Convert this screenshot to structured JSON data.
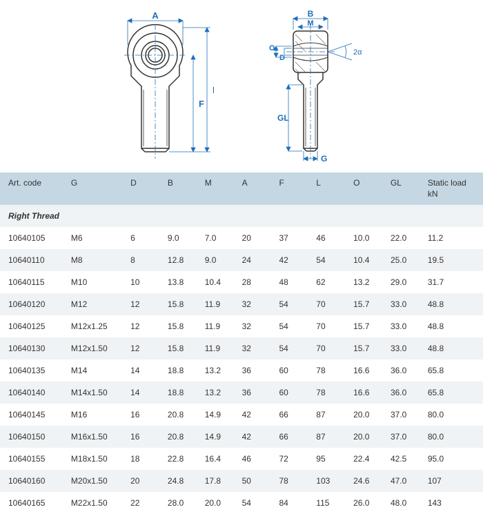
{
  "diagram": {
    "labels": {
      "A": "A",
      "B": "B",
      "M": "M",
      "O": "O",
      "D": "D",
      "F": "F",
      "L": "L",
      "G": "G",
      "GL": "GL",
      "alpha": "2α"
    },
    "colors": {
      "stroke": "#333333",
      "dimension": "#1e6fb8",
      "centerline": "#1e6fb8",
      "hatch": "#666666"
    }
  },
  "table": {
    "header_bg": "#c4d7e3",
    "row_even_bg": "#f0f3f5",
    "row_odd_bg": "#ffffff",
    "columns": [
      "Art. code",
      "G",
      "D",
      "B",
      "M",
      "A",
      "F",
      "L",
      "O",
      "GL",
      "Static load\nkN"
    ],
    "section_label": "Right Thread",
    "rows": [
      [
        "10640105",
        "M6",
        "6",
        "9.0",
        "7.0",
        "20",
        "37",
        "46",
        "10.0",
        "22.0",
        "11.2"
      ],
      [
        "10640110",
        "M8",
        "8",
        "12.8",
        "9.0",
        "24",
        "42",
        "54",
        "10.4",
        "25.0",
        "19.5"
      ],
      [
        "10640115",
        "M10",
        "10",
        "13.8",
        "10.4",
        "28",
        "48",
        "62",
        "13.2",
        "29.0",
        "31.7"
      ],
      [
        "10640120",
        "M12",
        "12",
        "15.8",
        "11.9",
        "32",
        "54",
        "70",
        "15.7",
        "33.0",
        "48.8"
      ],
      [
        "10640125",
        "M12x1.25",
        "12",
        "15.8",
        "11.9",
        "32",
        "54",
        "70",
        "15.7",
        "33.0",
        "48.8"
      ],
      [
        "10640130",
        "M12x1.50",
        "12",
        "15.8",
        "11.9",
        "32",
        "54",
        "70",
        "15.7",
        "33.0",
        "48.8"
      ],
      [
        "10640135",
        "M14",
        "14",
        "18.8",
        "13.2",
        "36",
        "60",
        "78",
        "16.6",
        "36.0",
        "65.8"
      ],
      [
        "10640140",
        "M14x1.50",
        "14",
        "18.8",
        "13.2",
        "36",
        "60",
        "78",
        "16.6",
        "36.0",
        "65.8"
      ],
      [
        "10640145",
        "M16",
        "16",
        "20.8",
        "14.9",
        "42",
        "66",
        "87",
        "20.0",
        "37.0",
        "80.0"
      ],
      [
        "10640150",
        "M16x1.50",
        "16",
        "20.8",
        "14.9",
        "42",
        "66",
        "87",
        "20.0",
        "37.0",
        "80.0"
      ],
      [
        "10640155",
        "M18x1.50",
        "18",
        "22.8",
        "16.4",
        "46",
        "72",
        "95",
        "22.4",
        "42.5",
        "95.0"
      ],
      [
        "10640160",
        "M20x1.50",
        "20",
        "24.8",
        "17.8",
        "50",
        "78",
        "103",
        "24.6",
        "47.0",
        "107"
      ],
      [
        "10640165",
        "M22x1.50",
        "22",
        "28.0",
        "20.0",
        "54",
        "84",
        "115",
        "26.0",
        "48.0",
        "143"
      ]
    ]
  }
}
